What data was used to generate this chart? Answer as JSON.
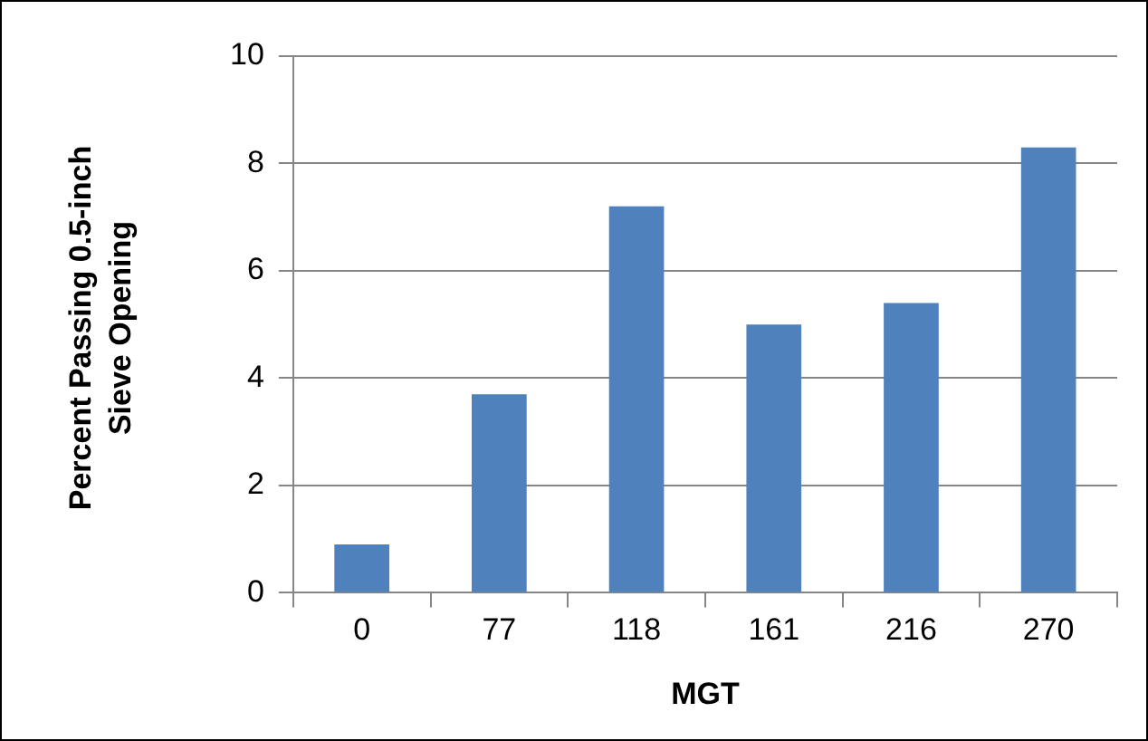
{
  "chart_data": {
    "type": "bar",
    "xlabel": "MGT",
    "ylabel": "Percent Passing 0.5-inch Sieve Opening",
    "categories": [
      "0",
      "77",
      "118",
      "161",
      "216",
      "270"
    ],
    "values": [
      0.9,
      3.7,
      7.2,
      5.0,
      5.4,
      8.3
    ],
    "color": "#4f81bd",
    "ylim": [
      0,
      10
    ],
    "yticks": [
      0,
      2,
      4,
      6,
      8,
      10
    ],
    "grid": "y"
  }
}
